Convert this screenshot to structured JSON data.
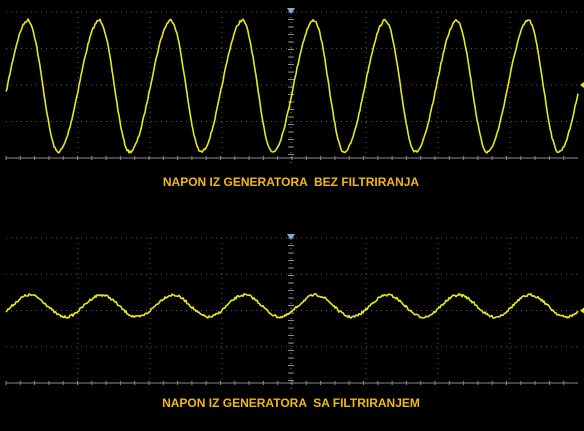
{
  "captions": {
    "top": "NAPON IZ GENERATORA  BEZ FILTRIRANJA",
    "bottom": "NAPON IZ GENERATORA  SA FILTRIRANJEM"
  }
}
